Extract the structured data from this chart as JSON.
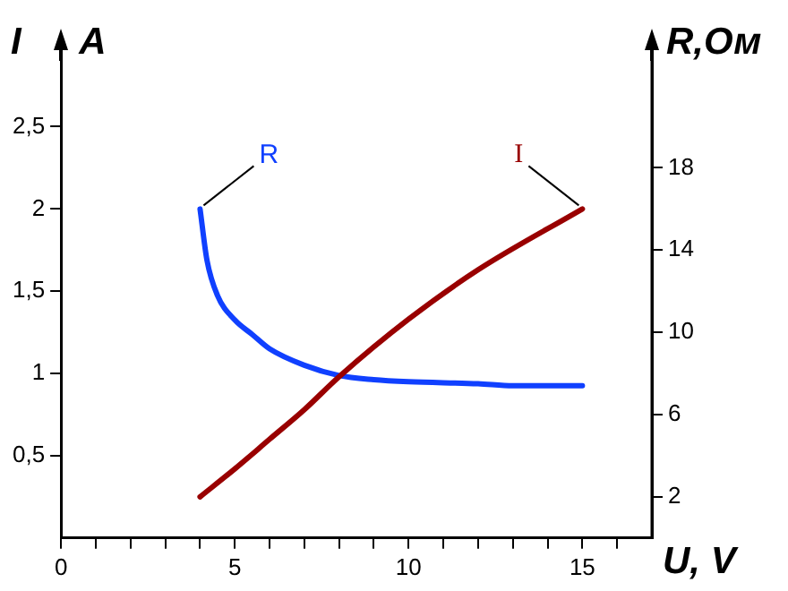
{
  "chart_data": {
    "type": "line",
    "xlabel": "U, V",
    "ylabel": "I A",
    "y2label": "R,Ом",
    "xlim": [
      0,
      17
    ],
    "ylim": [
      0,
      2.9
    ],
    "y2lim": [
      0,
      23.2
    ],
    "xticks": [
      {
        "value": 0,
        "label": "0"
      },
      {
        "value": 1,
        "label": null
      },
      {
        "value": 2,
        "label": null
      },
      {
        "value": 3,
        "label": null
      },
      {
        "value": 4,
        "label": null
      },
      5,
      {
        "value": 6,
        "label": null
      },
      {
        "value": 7,
        "label": null
      },
      {
        "value": 8,
        "label": null
      },
      {
        "value": 9,
        "label": null
      },
      10,
      {
        "value": 11,
        "label": null
      },
      {
        "value": 12,
        "label": null
      },
      {
        "value": 13,
        "label": null
      },
      {
        "value": 14,
        "label": null
      },
      15,
      {
        "value": 16,
        "label": null
      }
    ],
    "yticks": [
      {
        "value": 0.5,
        "label": "0,5"
      },
      1,
      {
        "value": 1.5,
        "label": "1,5"
      },
      2,
      {
        "value": 2.5,
        "label": "2,5"
      }
    ],
    "y2ticks": [
      2,
      6,
      10,
      14,
      18
    ],
    "grid": false,
    "legend": false,
    "marker": "none",
    "line_style": "solid",
    "series": [
      {
        "name": "I",
        "color": "#990000",
        "axis": "y",
        "x": [
          4,
          5,
          6,
          7,
          8,
          10,
          12,
          15
        ],
        "values": [
          0.25,
          0.42,
          0.6,
          0.78,
          0.98,
          1.33,
          1.63,
          2.0
        ]
      },
      {
        "name": "R",
        "color": "#1040ff",
        "axis": "y2",
        "x": [
          4,
          4.2,
          4.5,
          5,
          5.5,
          6,
          7,
          8,
          9,
          10,
          12,
          13,
          15
        ],
        "values": [
          16,
          13.5,
          11.8,
          10.6,
          9.9,
          9.2,
          8.4,
          7.9,
          7.7,
          7.6,
          7.5,
          7.4,
          7.4
        ]
      }
    ]
  }
}
